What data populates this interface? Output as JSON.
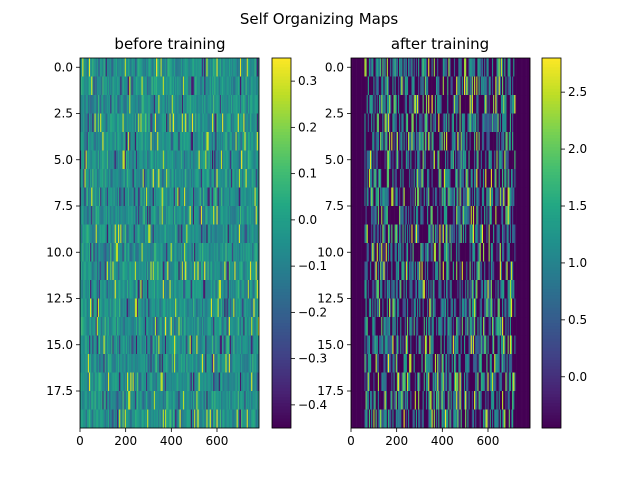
{
  "figure": {
    "suptitle": "Self Organizing Maps"
  },
  "chart_data": [
    {
      "type": "heatmap",
      "title": "before training",
      "xlabel": "",
      "ylabel": "",
      "rows": 20,
      "cols": 784,
      "xlim": [
        0,
        784
      ],
      "ylim": [
        19.5,
        -0.5
      ],
      "x_ticks": [
        0,
        200,
        400,
        600
      ],
      "x_tick_labels": [
        "0",
        "200",
        "400",
        "600"
      ],
      "y_ticks": [
        0,
        2.5,
        5,
        7.5,
        10,
        12.5,
        15,
        17.5
      ],
      "y_tick_labels": [
        "0.0",
        "2.5",
        "5.0",
        "7.5",
        "10.0",
        "12.5",
        "15.0",
        "17.5"
      ],
      "colormap": "viridis",
      "value_range": [
        -0.45,
        0.35
      ],
      "colorbar": {
        "min": -0.45,
        "max": 0.35,
        "ticks": [
          0.3,
          0.2,
          0.1,
          0.0,
          -0.1,
          -0.2,
          -0.3,
          -0.4
        ],
        "tick_labels": [
          "0.3",
          "0.2",
          "0.1",
          "0.0",
          "−0.1",
          "−0.2",
          "−0.3",
          "−0.4"
        ]
      }
    },
    {
      "type": "heatmap",
      "title": "after training",
      "xlabel": "",
      "ylabel": "",
      "rows": 20,
      "cols": 784,
      "xlim": [
        0,
        784
      ],
      "ylim": [
        19.5,
        -0.5
      ],
      "x_ticks": [
        0,
        200,
        400,
        600
      ],
      "x_tick_labels": [
        "0",
        "200",
        "400",
        "600"
      ],
      "y_ticks": [
        0,
        2.5,
        5,
        7.5,
        10,
        12.5,
        15,
        17.5
      ],
      "y_tick_labels": [
        "0.0",
        "2.5",
        "5.0",
        "7.5",
        "10.0",
        "12.5",
        "15.0",
        "17.5"
      ],
      "colormap": "viridis",
      "value_range": [
        -0.45,
        2.8
      ],
      "active_col_range": [
        60,
        720
      ],
      "colorbar": {
        "min": -0.45,
        "max": 2.8,
        "ticks": [
          2.5,
          2.0,
          1.5,
          1.0,
          0.5,
          0.0
        ],
        "tick_labels": [
          "2.5",
          "2.0",
          "1.5",
          "1.0",
          "0.5",
          "0.0"
        ]
      }
    }
  ]
}
